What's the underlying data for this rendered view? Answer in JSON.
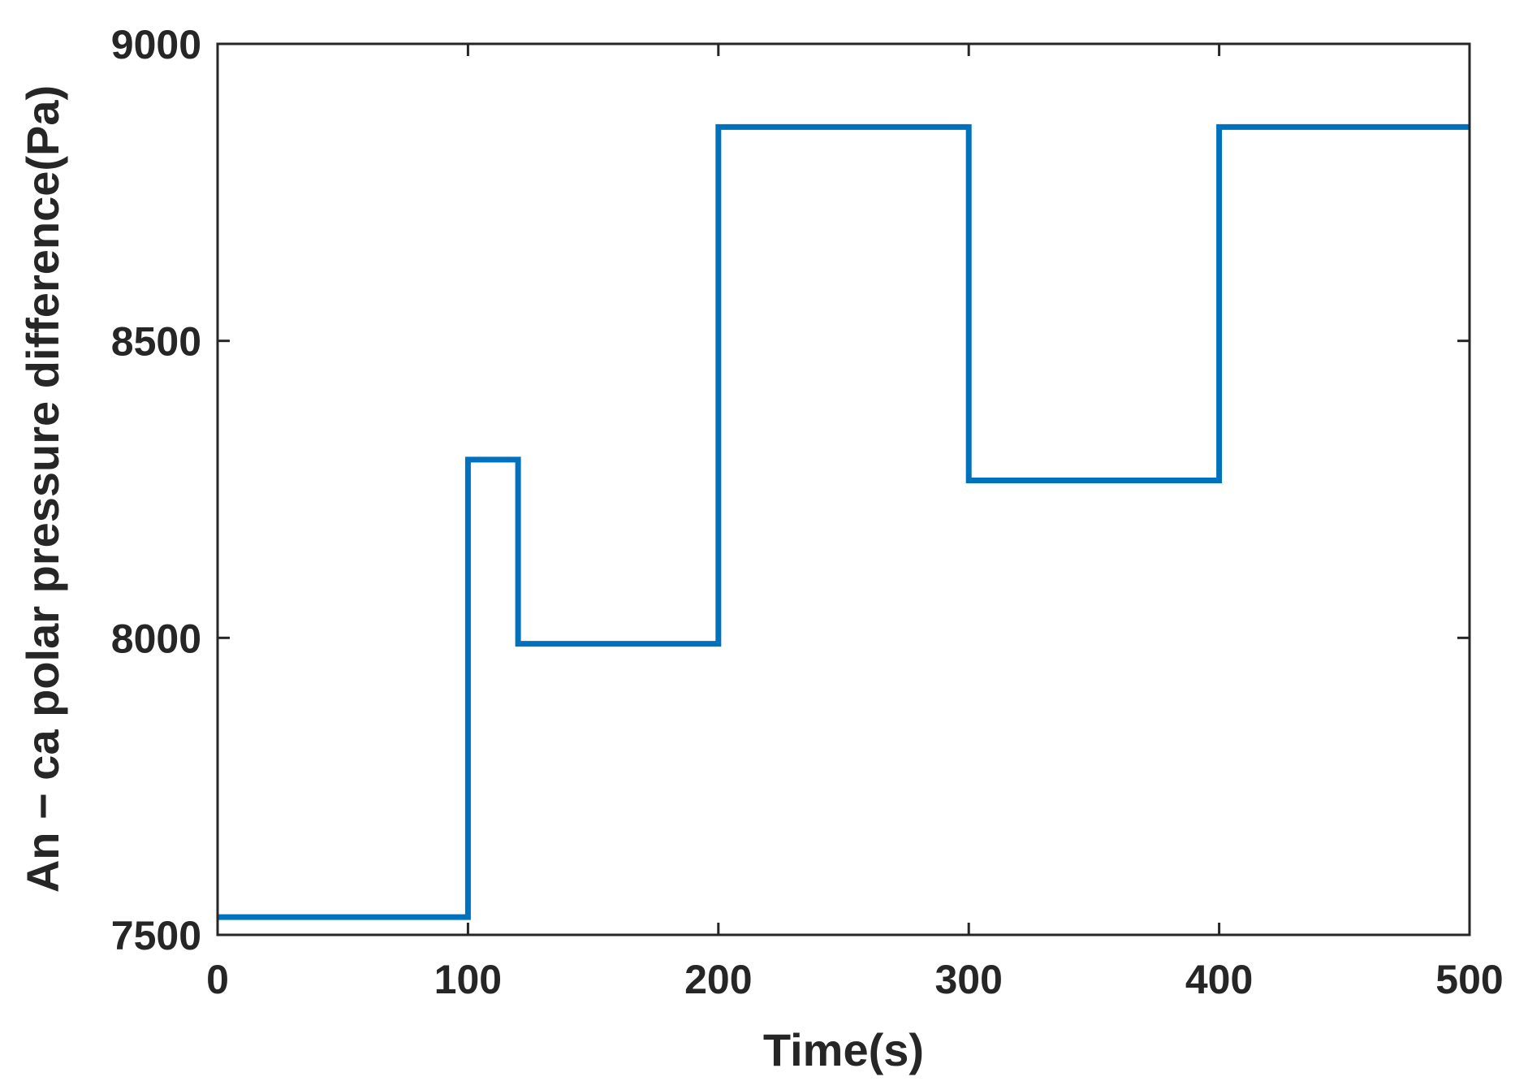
{
  "chart_data": {
    "type": "line",
    "title": "",
    "xlabel": "Time(s)",
    "ylabel": "An − ca polar pressure difference(Pa)",
    "xlim": [
      0,
      500
    ],
    "ylim": [
      7500,
      9000
    ],
    "xticks": [
      0,
      100,
      200,
      300,
      400,
      500
    ],
    "yticks": [
      7500,
      8000,
      8500,
      9000
    ],
    "xtick_labels": [
      "0",
      "100",
      "200",
      "300",
      "400",
      "500"
    ],
    "ytick_labels": [
      "7500",
      "8000",
      "8500",
      "9000"
    ],
    "grid": false,
    "series": [
      {
        "color": "#0072BD",
        "x": [
          0,
          100,
          100,
          120,
          120,
          200,
          200,
          300,
          300,
          400,
          400,
          500
        ],
        "y": [
          7530,
          7530,
          8300,
          8300,
          7990,
          7990,
          8860,
          8860,
          8265,
          8265,
          8860,
          8860
        ]
      }
    ]
  }
}
